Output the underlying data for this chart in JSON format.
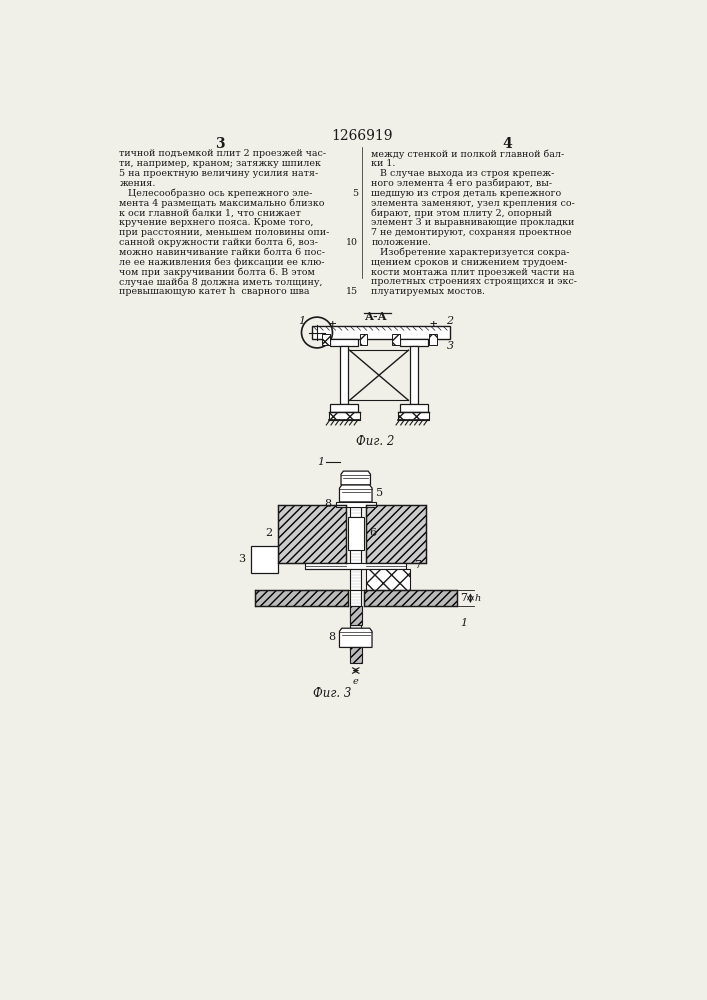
{
  "page_title": "1266919",
  "col_left_num": "3",
  "col_right_num": "4",
  "text_left": [
    "тичной подъемкой плит 2 проезжей час-",
    "ти, например, краном; затяжку шпилек",
    "5 на проектную величину усилия натя-",
    "жения.",
    "   Целесообразно ось крепежного эле-",
    "мента 4 размещать максимально близко",
    "к оси главной балки 1, что снижает",
    "кручение верхнего пояса. Кроме того,",
    "при расстоянии, меньшем половины опи-",
    "санной окружности гайки болта 6, воз-",
    "можно навинчивание гайки болта 6 пос-",
    "ле ее наживления без фиксации ее клю-",
    "чом при закручивании болта 6. В этом",
    "случае шайба 8 должна иметь толщину,",
    "превышающую катет h  сварного шва"
  ],
  "text_right": [
    "между стенкой и полкой главной бал-",
    "ки 1.",
    "   В случае выхода из строя крепеж-",
    "ного элемента 4 его разбирают, вы-",
    "шедшую из строя деталь крепежного",
    "элемента заменяют, узел крепления со-",
    "бирают, при этом плиту 2, опорный",
    "элемент 3 и выравнивающие прокладки",
    "7 не демонтируют, сохраняя проектное",
    "положение.",
    "   Изобретение характеризуется сокра-",
    "щением сроков и снижением трудоем-",
    "кости монтажа плит проезжей части на",
    "пролетных строениях строящихся и экс-",
    "плуатируемых мостов."
  ],
  "fig2_caption": "Фиг. 2",
  "fig3_caption": "Фиг. 3",
  "bg_color": "#f0efe8",
  "line_color": "#1a1a1a",
  "text_color": "#1a1a1a",
  "font_size_text": 6.8,
  "font_size_caption": 8.5,
  "font_size_header": 10,
  "font_size_label": 8
}
